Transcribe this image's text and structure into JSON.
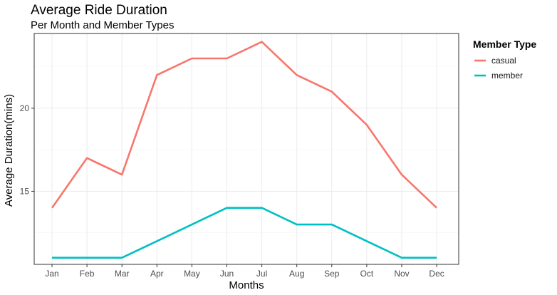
{
  "chart_data": {
    "type": "line",
    "title": "Average Ride Duration",
    "subtitle": "Per Month and Member Types",
    "xlabel": "Months",
    "ylabel": "Average Duration(mins)",
    "categories": [
      "Jan",
      "Feb",
      "Mar",
      "Apr",
      "May",
      "Jun",
      "Jul",
      "Aug",
      "Sep",
      "Oct",
      "Nov",
      "Dec"
    ],
    "ylim": [
      10.6,
      24.5
    ],
    "yticks": [
      15,
      20
    ],
    "ytick_labels": [
      "15",
      "20"
    ],
    "grid": true,
    "legend": {
      "title": "Member Type",
      "placement": "right"
    },
    "series": [
      {
        "name": "casual",
        "color": "#F8766D",
        "values": [
          14,
          17,
          16,
          22,
          23,
          23,
          24,
          22,
          21,
          19,
          16,
          14
        ]
      },
      {
        "name": "member",
        "color": "#00BFC4",
        "values": [
          11,
          11,
          11,
          12,
          13,
          14,
          14,
          13,
          13,
          12,
          11,
          11
        ]
      }
    ]
  }
}
